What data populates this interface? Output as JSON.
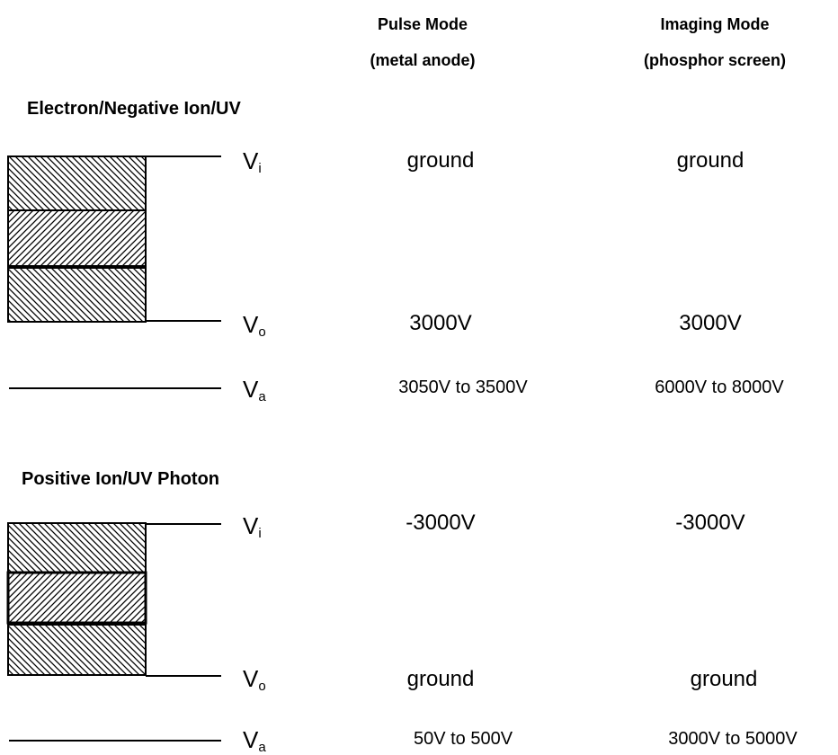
{
  "columns": {
    "pulse": {
      "title": "Pulse Mode",
      "subtitle": "(metal anode)"
    },
    "imaging": {
      "title": "Imaging Mode",
      "subtitle": "(phosphor screen)"
    }
  },
  "sections": [
    {
      "title": "Electron/Negative Ion/UV",
      "rows": [
        {
          "label_main": "V",
          "label_sub": "i",
          "pulse": "ground",
          "imaging": "ground"
        },
        {
          "label_main": "V",
          "label_sub": "o",
          "pulse": "3000V",
          "imaging": "3000V"
        },
        {
          "label_main": "V",
          "label_sub": "a",
          "pulse": "3050V to 3500V",
          "imaging": "6000V to 8000V"
        }
      ]
    },
    {
      "title": "Positive Ion/UV  Photon",
      "rows": [
        {
          "label_main": "V",
          "label_sub": "i",
          "pulse": "-3000V",
          "imaging": "-3000V"
        },
        {
          "label_main": "V",
          "label_sub": "o",
          "pulse": "ground",
          "imaging": "ground"
        },
        {
          "label_main": "V",
          "label_sub": "a",
          "pulse": "50V to 500V",
          "imaging": "3000V to 5000V"
        }
      ]
    }
  ],
  "colors": {
    "line": "#000000",
    "hatch": "#000000",
    "background": "#ffffff"
  }
}
